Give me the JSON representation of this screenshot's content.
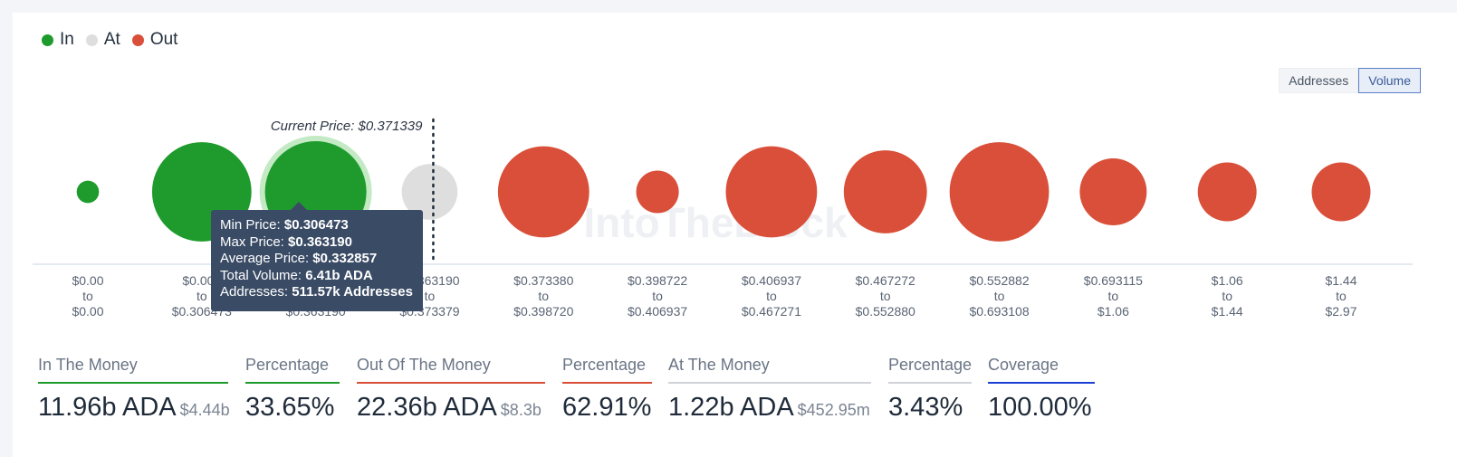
{
  "legend": [
    {
      "label": "In",
      "color": "#1e9b2c"
    },
    {
      "label": "At",
      "color": "#dedede"
    },
    {
      "label": "Out",
      "color": "#d94f39"
    }
  ],
  "toggle": {
    "addresses_label": "Addresses",
    "volume_label": "Volume",
    "active": "Volume"
  },
  "watermark": "IntoTheBlock",
  "chart_data": {
    "type": "bubble",
    "current_price_label": "Current Price: $0.371339",
    "buckets": [
      {
        "range_low": "$0.00",
        "range_high": "$0.00",
        "status": "in",
        "size": 0.22
      },
      {
        "range_low": "$0.000",
        "range_high": "$0.306473",
        "status": "in",
        "size": 0.98
      },
      {
        "range_low": "$0.306473",
        "range_high": "$0.363190",
        "status": "in",
        "size": 1.0,
        "highlighted": true
      },
      {
        "range_low": "$0.363190",
        "range_high": "$0.373379",
        "status": "at",
        "size": 0.55
      },
      {
        "range_low": "$0.373380",
        "range_high": "$0.398720",
        "status": "out",
        "size": 0.9
      },
      {
        "range_low": "$0.398722",
        "range_high": "$0.406937",
        "status": "out",
        "size": 0.42
      },
      {
        "range_low": "$0.406937",
        "range_high": "$0.467271",
        "status": "out",
        "size": 0.9
      },
      {
        "range_low": "$0.467272",
        "range_high": "$0.552880",
        "status": "out",
        "size": 0.82
      },
      {
        "range_low": "$0.552882",
        "range_high": "$0.693108",
        "status": "out",
        "size": 0.98
      },
      {
        "range_low": "$0.693115",
        "range_high": "$1.06",
        "status": "out",
        "size": 0.66
      },
      {
        "range_low": "$1.06",
        "range_high": "$1.44",
        "status": "out",
        "size": 0.58
      },
      {
        "range_low": "$1.44",
        "range_high": "$2.97",
        "status": "out",
        "size": 0.58
      }
    ],
    "range_connector": "to"
  },
  "tooltip": {
    "min_label": "Min Price:",
    "min_value": "$0.306473",
    "max_label": "Max Price:",
    "max_value": "$0.363190",
    "avg_label": "Average Price:",
    "avg_value": "$0.332857",
    "vol_label": "Total Volume:",
    "vol_value": "6.41b ADA",
    "addr_label": "Addresses:",
    "addr_value": "511.57k Addresses"
  },
  "stats": [
    {
      "label": "In The Money",
      "value": "11.96b ADA",
      "sub": "$4.44b",
      "color": "#1e9b2c"
    },
    {
      "label": "Percentage",
      "value": "33.65%",
      "sub": "",
      "color": "#1e9b2c"
    },
    {
      "label": "Out Of The Money",
      "value": "22.36b ADA",
      "sub": "$8.3b",
      "color": "#d94f39"
    },
    {
      "label": "Percentage",
      "value": "62.91%",
      "sub": "",
      "color": "#d94f39"
    },
    {
      "label": "At The Money",
      "value": "1.22b ADA",
      "sub": "$452.95m",
      "color": "#cfd3d8"
    },
    {
      "label": "Percentage",
      "value": "3.43%",
      "sub": "",
      "color": "#cfd3d8"
    },
    {
      "label": "Coverage",
      "value": "100.00%",
      "sub": "",
      "color": "#1b3fd6"
    }
  ]
}
